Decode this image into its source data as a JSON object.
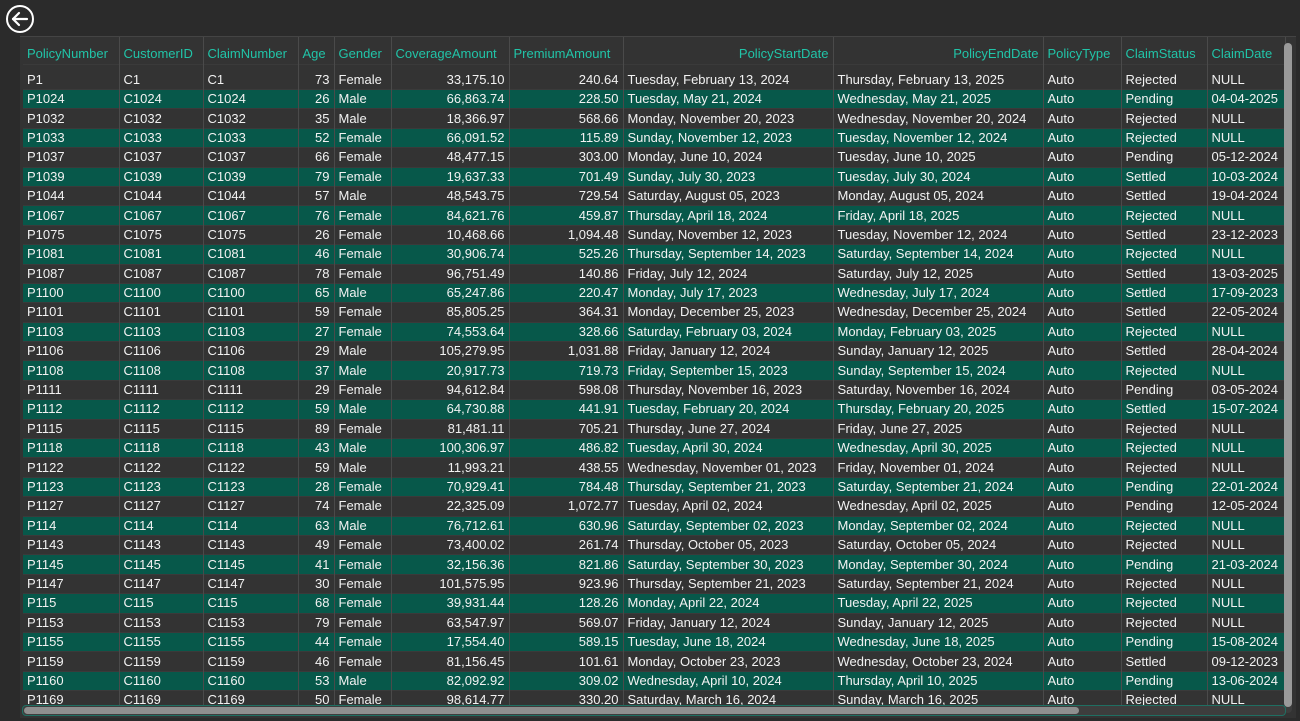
{
  "window": {
    "back_icon": "back-arrow-circle-icon"
  },
  "table": {
    "columns": [
      "PolicyNumber",
      "CustomerID",
      "ClaimNumber",
      "Age",
      "Gender",
      "CoverageAmount",
      "PremiumAmount",
      "PolicyStartDate",
      "PolicyEndDate",
      "PolicyType",
      "ClaimStatus",
      "ClaimDate"
    ],
    "rows": [
      [
        "P1",
        "C1",
        "C1",
        "73",
        "Female",
        "33,175.10",
        "240.64",
        "Tuesday, February 13, 2024",
        "Thursday, February 13, 2025",
        "Auto",
        "Rejected",
        "NULL"
      ],
      [
        "P1024",
        "C1024",
        "C1024",
        "26",
        "Male",
        "66,863.74",
        "228.50",
        "Tuesday, May 21, 2024",
        "Wednesday, May 21, 2025",
        "Auto",
        "Pending",
        "04-04-2025"
      ],
      [
        "P1032",
        "C1032",
        "C1032",
        "35",
        "Male",
        "18,366.97",
        "568.66",
        "Monday, November 20, 2023",
        "Wednesday, November 20, 2024",
        "Auto",
        "Rejected",
        "NULL"
      ],
      [
        "P1033",
        "C1033",
        "C1033",
        "52",
        "Female",
        "66,091.52",
        "115.89",
        "Sunday, November 12, 2023",
        "Tuesday, November 12, 2024",
        "Auto",
        "Rejected",
        "NULL"
      ],
      [
        "P1037",
        "C1037",
        "C1037",
        "66",
        "Female",
        "48,477.15",
        "303.00",
        "Monday, June 10, 2024",
        "Tuesday, June 10, 2025",
        "Auto",
        "Pending",
        "05-12-2024"
      ],
      [
        "P1039",
        "C1039",
        "C1039",
        "79",
        "Female",
        "19,637.33",
        "701.49",
        "Sunday, July 30, 2023",
        "Tuesday, July 30, 2024",
        "Auto",
        "Settled",
        "10-03-2024"
      ],
      [
        "P1044",
        "C1044",
        "C1044",
        "57",
        "Male",
        "48,543.75",
        "729.54",
        "Saturday, August 05, 2023",
        "Monday, August 05, 2024",
        "Auto",
        "Settled",
        "19-04-2024"
      ],
      [
        "P1067",
        "C1067",
        "C1067",
        "76",
        "Female",
        "84,621.76",
        "459.87",
        "Thursday, April 18, 2024",
        "Friday, April 18, 2025",
        "Auto",
        "Rejected",
        "NULL"
      ],
      [
        "P1075",
        "C1075",
        "C1075",
        "26",
        "Female",
        "10,468.66",
        "1,094.48",
        "Sunday, November 12, 2023",
        "Tuesday, November 12, 2024",
        "Auto",
        "Settled",
        "23-12-2023"
      ],
      [
        "P1081",
        "C1081",
        "C1081",
        "46",
        "Female",
        "30,906.74",
        "525.26",
        "Thursday, September 14, 2023",
        "Saturday, September 14, 2024",
        "Auto",
        "Rejected",
        "NULL"
      ],
      [
        "P1087",
        "C1087",
        "C1087",
        "78",
        "Female",
        "96,751.49",
        "140.86",
        "Friday, July 12, 2024",
        "Saturday, July 12, 2025",
        "Auto",
        "Settled",
        "13-03-2025"
      ],
      [
        "P1100",
        "C1100",
        "C1100",
        "65",
        "Male",
        "65,247.86",
        "220.47",
        "Monday, July 17, 2023",
        "Wednesday, July 17, 2024",
        "Auto",
        "Settled",
        "17-09-2023"
      ],
      [
        "P1101",
        "C1101",
        "C1101",
        "59",
        "Female",
        "85,805.25",
        "364.31",
        "Monday, December 25, 2023",
        "Wednesday, December 25, 2024",
        "Auto",
        "Settled",
        "22-05-2024"
      ],
      [
        "P1103",
        "C1103",
        "C1103",
        "27",
        "Female",
        "74,553.64",
        "328.66",
        "Saturday, February 03, 2024",
        "Monday, February 03, 2025",
        "Auto",
        "Rejected",
        "NULL"
      ],
      [
        "P1106",
        "C1106",
        "C1106",
        "29",
        "Male",
        "105,279.95",
        "1,031.88",
        "Friday, January 12, 2024",
        "Sunday, January 12, 2025",
        "Auto",
        "Settled",
        "28-04-2024"
      ],
      [
        "P1108",
        "C1108",
        "C1108",
        "37",
        "Male",
        "20,917.73",
        "719.73",
        "Friday, September 15, 2023",
        "Sunday, September 15, 2024",
        "Auto",
        "Rejected",
        "NULL"
      ],
      [
        "P1111",
        "C1111",
        "C1111",
        "29",
        "Female",
        "94,612.84",
        "598.08",
        "Thursday, November 16, 2023",
        "Saturday, November 16, 2024",
        "Auto",
        "Pending",
        "03-05-2024"
      ],
      [
        "P1112",
        "C1112",
        "C1112",
        "59",
        "Male",
        "64,730.88",
        "441.91",
        "Tuesday, February 20, 2024",
        "Thursday, February 20, 2025",
        "Auto",
        "Settled",
        "15-07-2024"
      ],
      [
        "P1115",
        "C1115",
        "C1115",
        "89",
        "Female",
        "81,481.11",
        "705.21",
        "Thursday, June 27, 2024",
        "Friday, June 27, 2025",
        "Auto",
        "Rejected",
        "NULL"
      ],
      [
        "P1118",
        "C1118",
        "C1118",
        "43",
        "Male",
        "100,306.97",
        "486.82",
        "Tuesday, April 30, 2024",
        "Wednesday, April 30, 2025",
        "Auto",
        "Rejected",
        "NULL"
      ],
      [
        "P1122",
        "C1122",
        "C1122",
        "59",
        "Male",
        "11,993.21",
        "438.55",
        "Wednesday, November 01, 2023",
        "Friday, November 01, 2024",
        "Auto",
        "Rejected",
        "NULL"
      ],
      [
        "P1123",
        "C1123",
        "C1123",
        "28",
        "Female",
        "70,929.41",
        "784.48",
        "Thursday, September 21, 2023",
        "Saturday, September 21, 2024",
        "Auto",
        "Pending",
        "22-01-2024"
      ],
      [
        "P1127",
        "C1127",
        "C1127",
        "74",
        "Female",
        "22,325.09",
        "1,072.77",
        "Tuesday, April 02, 2024",
        "Wednesday, April 02, 2025",
        "Auto",
        "Pending",
        "12-05-2024"
      ],
      [
        "P114",
        "C114",
        "C114",
        "63",
        "Male",
        "76,712.61",
        "630.96",
        "Saturday, September 02, 2023",
        "Monday, September 02, 2024",
        "Auto",
        "Rejected",
        "NULL"
      ],
      [
        "P1143",
        "C1143",
        "C1143",
        "49",
        "Female",
        "73,400.02",
        "261.74",
        "Thursday, October 05, 2023",
        "Saturday, October 05, 2024",
        "Auto",
        "Rejected",
        "NULL"
      ],
      [
        "P1145",
        "C1145",
        "C1145",
        "41",
        "Female",
        "32,156.36",
        "821.86",
        "Saturday, September 30, 2023",
        "Monday, September 30, 2024",
        "Auto",
        "Pending",
        "21-03-2024"
      ],
      [
        "P1147",
        "C1147",
        "C1147",
        "30",
        "Female",
        "101,575.95",
        "923.96",
        "Thursday, September 21, 2023",
        "Saturday, September 21, 2024",
        "Auto",
        "Rejected",
        "NULL"
      ],
      [
        "P115",
        "C115",
        "C115",
        "68",
        "Female",
        "39,931.44",
        "128.26",
        "Monday, April 22, 2024",
        "Tuesday, April 22, 2025",
        "Auto",
        "Rejected",
        "NULL"
      ],
      [
        "P1153",
        "C1153",
        "C1153",
        "79",
        "Female",
        "63,547.97",
        "569.07",
        "Friday, January 12, 2024",
        "Sunday, January 12, 2025",
        "Auto",
        "Rejected",
        "NULL"
      ],
      [
        "P1155",
        "C1155",
        "C1155",
        "44",
        "Female",
        "17,554.40",
        "589.15",
        "Tuesday, June 18, 2024",
        "Wednesday, June 18, 2025",
        "Auto",
        "Pending",
        "15-08-2024"
      ],
      [
        "P1159",
        "C1159",
        "C1159",
        "46",
        "Female",
        "81,156.45",
        "101.61",
        "Monday, October 23, 2023",
        "Wednesday, October 23, 2024",
        "Auto",
        "Settled",
        "09-12-2023"
      ],
      [
        "P1160",
        "C1160",
        "C1160",
        "53",
        "Male",
        "82,092.92",
        "309.02",
        "Wednesday, April 10, 2024",
        "Thursday, April 10, 2025",
        "Auto",
        "Pending",
        "13-06-2024"
      ],
      [
        "P1169",
        "C1169",
        "C1169",
        "50",
        "Female",
        "98,614.77",
        "330.20",
        "Saturday, March 16, 2024",
        "Sunday, March 16, 2025",
        "Auto",
        "Rejected",
        "NULL"
      ]
    ]
  },
  "colors": {
    "header_text": "#21c4a8",
    "alt_row": "#07584a",
    "background": "#333333"
  }
}
